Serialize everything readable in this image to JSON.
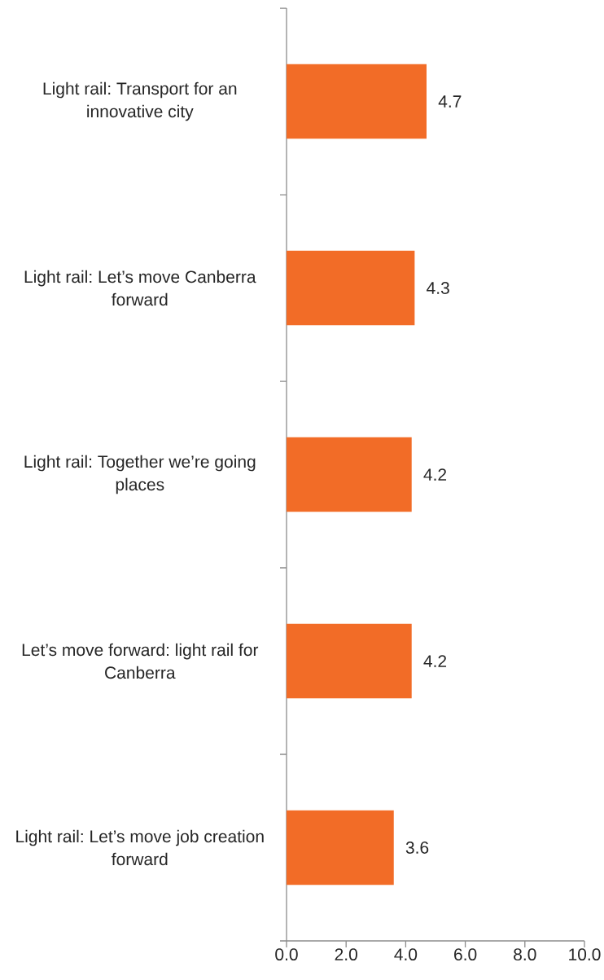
{
  "chart_data": {
    "type": "bar",
    "orientation": "horizontal",
    "categories": [
      "Light rail: Transport for an innovative city",
      "Light rail: Let’s move Canberra forward",
      "Light rail: Together we’re going places",
      "Let’s move forward: light rail for Canberra",
      "Light rail: Let’s move job creation forward"
    ],
    "values": [
      4.7,
      4.3,
      4.2,
      4.2,
      3.6
    ],
    "color": "#f26c27",
    "data_labels": true,
    "xlim": [
      0,
      10
    ],
    "xticks": [
      {
        "value": 0,
        "label": "0.0"
      },
      {
        "value": 2,
        "label": "2.0"
      },
      {
        "value": 4,
        "label": "4.0"
      },
      {
        "value": 6,
        "label": "6.0"
      },
      {
        "value": 8,
        "label": "8.0"
      },
      {
        "value": 10,
        "label": "10.0"
      }
    ]
  }
}
